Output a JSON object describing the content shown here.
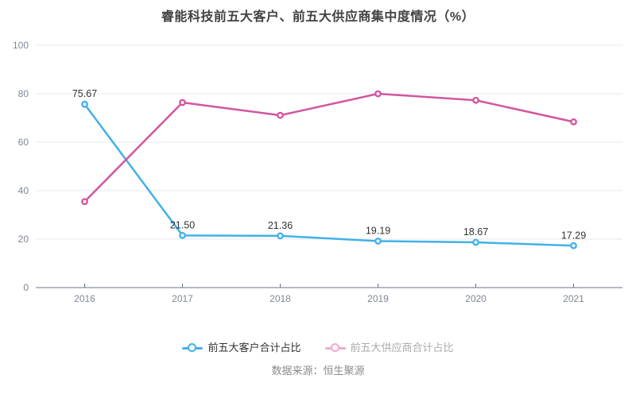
{
  "title": "睿能科技前五大客户、前五大供应商集中度情况（%）",
  "source": "数据来源：恒生聚源",
  "colors": {
    "title_text": "#424242",
    "axis_line": "#6e7687",
    "gridline": "#e3e8f2",
    "tick_label": "#7f8796",
    "data_label": "#333333",
    "source_text": "#8b8b8b",
    "background": "#ffffff"
  },
  "chart_data": {
    "type": "line",
    "categories": [
      "2016",
      "2017",
      "2018",
      "2019",
      "2020",
      "2021"
    ],
    "series": [
      {
        "name": "前五大客户合计占比",
        "color": "#41b1e8",
        "values": [
          75.67,
          21.5,
          21.36,
          19.19,
          18.67,
          17.29
        ],
        "labels": [
          "75.67",
          "21.50",
          "21.36",
          "19.19",
          "18.67",
          "17.29"
        ],
        "labels_visible": true,
        "legend_marker_color": "#41b1e8",
        "legend_text_color": "#333333"
      },
      {
        "name": "前五大供应商合计占比",
        "color": "#d2569f",
        "values": [
          35.5,
          76.4,
          71.1,
          80.0,
          77.3,
          68.4
        ],
        "labels": [],
        "labels_visible": false,
        "legend_marker_color": "#f0aad2",
        "legend_text_color": "#aaaaaa"
      }
    ],
    "title": "睿能科技前五大客户、前五大供应商集中度情况（%）",
    "xlabel": "",
    "ylabel": "",
    "ylim": [
      0,
      100
    ],
    "yticks": [
      0,
      20,
      40,
      60,
      80,
      100
    ],
    "grid": true,
    "legend_position": "bottom",
    "marker_style": "hollow-circle"
  }
}
